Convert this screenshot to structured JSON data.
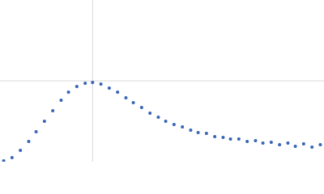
{
  "chart_data": {
    "type": "scatter",
    "color": "#3a66b5",
    "grid": true,
    "xlim": [
      0,
      3.5
    ],
    "ylim": [
      0,
      2
    ],
    "xticks": [
      1
    ],
    "yticks": [
      1
    ],
    "x": [
      0.04,
      0.13,
      0.22,
      0.31,
      0.39,
      0.48,
      0.57,
      0.66,
      0.74,
      0.83,
      0.92,
      1.0,
      1.09,
      1.18,
      1.27,
      1.36,
      1.44,
      1.53,
      1.62,
      1.71,
      1.79,
      1.88,
      1.97,
      2.06,
      2.14,
      2.23,
      2.32,
      2.41,
      2.49,
      2.58,
      2.67,
      2.76,
      2.84,
      2.93,
      3.02,
      3.11,
      3.19,
      3.28,
      3.37,
      3.46
    ],
    "values": [
      0.01,
      0.05,
      0.14,
      0.25,
      0.37,
      0.5,
      0.63,
      0.76,
      0.86,
      0.93,
      0.97,
      0.98,
      0.96,
      0.91,
      0.86,
      0.79,
      0.73,
      0.67,
      0.6,
      0.55,
      0.5,
      0.46,
      0.43,
      0.39,
      0.36,
      0.35,
      0.31,
      0.3,
      0.28,
      0.28,
      0.25,
      0.26,
      0.23,
      0.24,
      0.21,
      0.23,
      0.19,
      0.22,
      0.18,
      0.21
    ]
  }
}
